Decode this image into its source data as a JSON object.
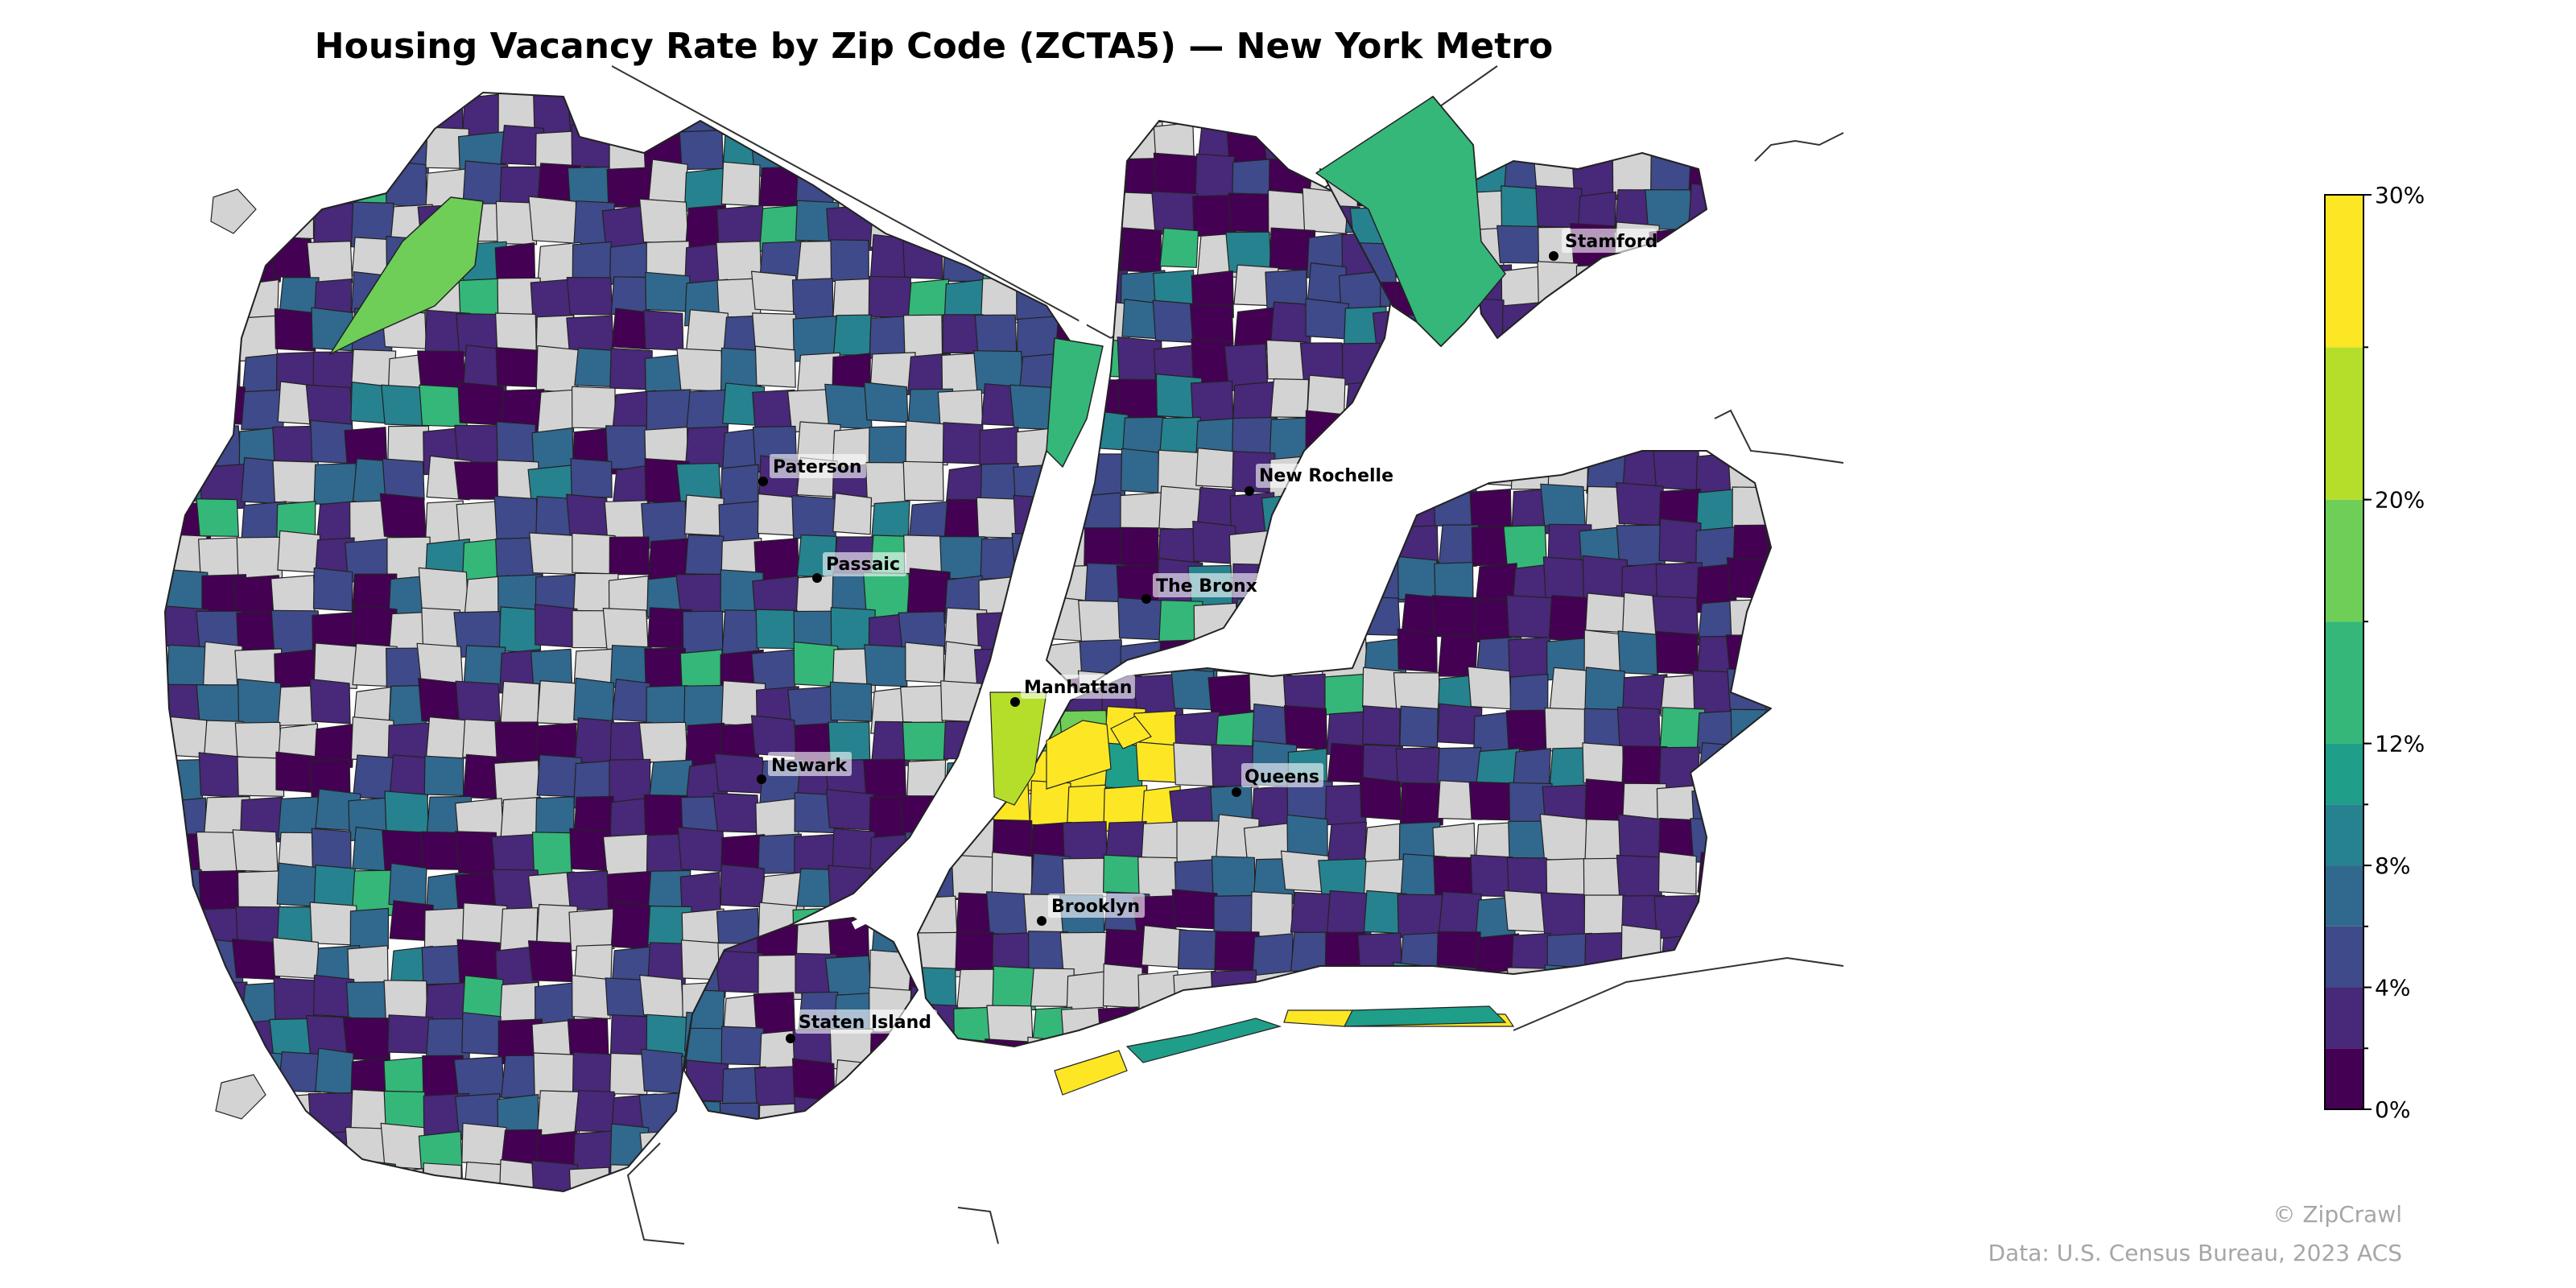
{
  "title": "Housing Vacancy Rate by Zip Code (ZCTA5) — New York Metro",
  "legend": {
    "type": "colorbar",
    "min": 0,
    "max": 30,
    "unit": "%",
    "ticks": [
      "0%",
      "4%",
      "8%",
      "12%",
      "20%",
      "30%"
    ],
    "bins": [
      {
        "from": 0,
        "to": 2,
        "color": "#440154"
      },
      {
        "from": 2,
        "to": 4,
        "color": "#482878"
      },
      {
        "from": 4,
        "to": 6,
        "color": "#3e4a89"
      },
      {
        "from": 6,
        "to": 8,
        "color": "#31688e"
      },
      {
        "from": 8,
        "to": 10,
        "color": "#26828e"
      },
      {
        "from": 10,
        "to": 12,
        "color": "#1f9e89"
      },
      {
        "from": 12,
        "to": 16,
        "color": "#35b779"
      },
      {
        "from": 16,
        "to": 20,
        "color": "#6ece58"
      },
      {
        "from": 20,
        "to": 25,
        "color": "#b5de2b"
      },
      {
        "from": 25,
        "to": 30,
        "color": "#fde725"
      }
    ],
    "no_data_color": "#d3d3d3"
  },
  "cities": [
    {
      "name": "Stamford"
    },
    {
      "name": "Paterson"
    },
    {
      "name": "New Rochelle"
    },
    {
      "name": "Passaic"
    },
    {
      "name": "The Bronx"
    },
    {
      "name": "Manhattan"
    },
    {
      "name": "Newark"
    },
    {
      "name": "Queens"
    },
    {
      "name": "Brooklyn"
    },
    {
      "name": "Staten Island"
    }
  ],
  "credits": {
    "copyright": "© ZipCrawl",
    "source": "Data: U.S. Census Bureau, 2023 ACS"
  }
}
